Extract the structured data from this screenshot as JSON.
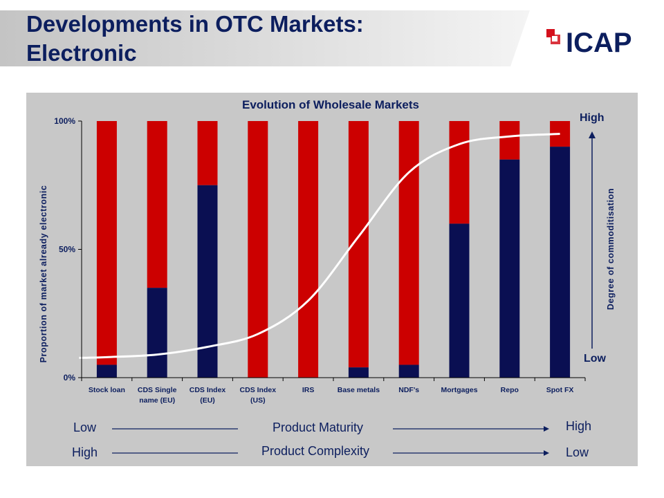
{
  "header": {
    "title_line1": "Developments in OTC Markets:",
    "title_line2": "Electronic"
  },
  "logo": {
    "text": "ICAP",
    "icon": "icap-logo-icon",
    "color": "#d4101c"
  },
  "colors": {
    "electronic": "#0a0f52",
    "remainder": "#cc0000",
    "panel": "#c8c8c8",
    "title": "#0c1e5e",
    "curve": "#ffffff"
  },
  "chart_data": {
    "type": "bar",
    "stacked": true,
    "title": "Evolution of Wholesale Markets",
    "ylabel": "Proportion of market already electronic",
    "ylim": [
      0,
      100
    ],
    "yticks": [
      "0%",
      "50%",
      "100%"
    ],
    "categories": [
      [
        "Stock loan"
      ],
      [
        "CDS Single",
        "name (EU)"
      ],
      [
        "CDS Index",
        "(EU)"
      ],
      [
        "CDS Index",
        "(US)"
      ],
      [
        "IRS"
      ],
      [
        "Base metals"
      ],
      [
        "NDF's"
      ],
      [
        "Mortgages"
      ],
      [
        "Repo"
      ],
      [
        "Spot FX"
      ]
    ],
    "series": [
      {
        "values": [
          5,
          35,
          75,
          0,
          0,
          4,
          5,
          60,
          85,
          90
        ]
      },
      {
        "values": [
          95,
          65,
          25,
          100,
          100,
          96,
          95,
          40,
          15,
          10
        ]
      }
    ],
    "secondary_axis": {
      "label": "Degree of commoditisation",
      "high": "High",
      "low": "Low"
    },
    "commoditisation_curve": [
      8,
      9,
      12,
      17,
      30,
      55,
      80,
      91,
      94,
      95
    ],
    "legend": "none",
    "grid": false
  },
  "bottom": {
    "maturity": {
      "label": "Product Maturity",
      "left": "Low",
      "right": "High"
    },
    "complexity": {
      "label": "Product Complexity",
      "left": "High",
      "right": "Low"
    }
  }
}
